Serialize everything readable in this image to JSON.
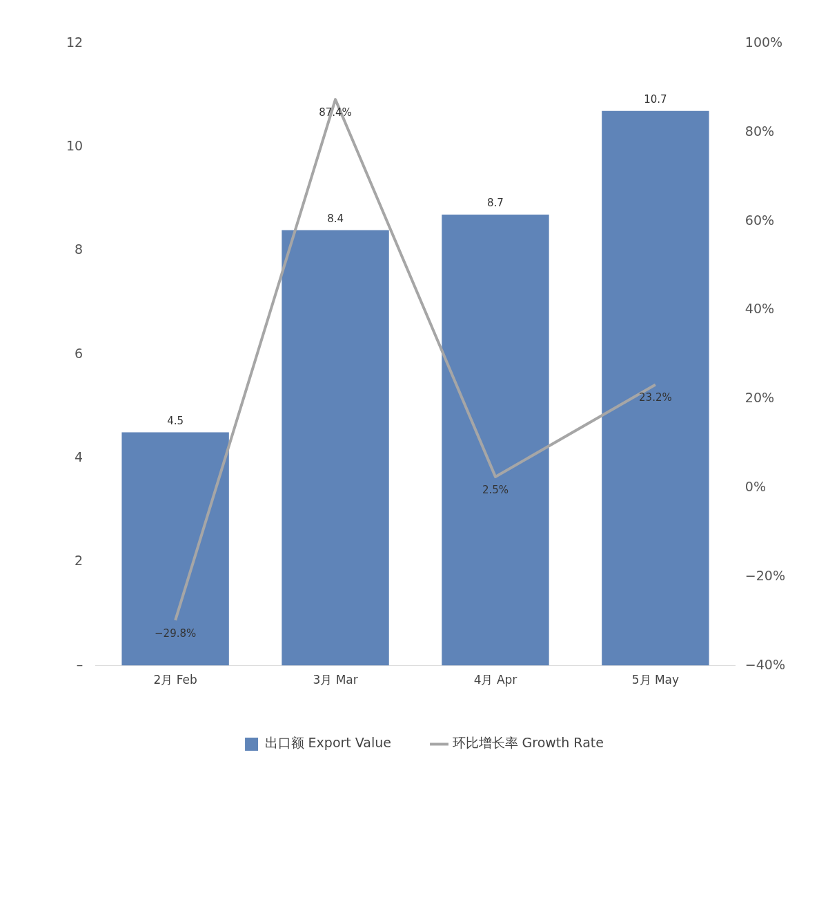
{
  "chart_data": {
    "type": "bar",
    "categories": [
      "2月 Feb",
      "3月 Mar",
      "4月 Apr",
      "5月 May"
    ],
    "series": [
      {
        "name": "出口额 Export Value",
        "color": "#5f84b8",
        "values": [
          4.5,
          8.4,
          8.7,
          10.7
        ],
        "value_labels": [
          "4.5",
          "8.4",
          "8.7",
          "10.7"
        ]
      },
      {
        "name": "环比增长率 Growth Rate",
        "type": "line",
        "axis": "y2",
        "color": "#a6a6a6",
        "values": [
          -29.8,
          87.4,
          2.5,
          23.2
        ],
        "value_labels": [
          "−29.8%",
          "87.4%",
          "2.5%",
          "23.2%"
        ]
      }
    ],
    "ylim": [
      0,
      12
    ],
    "yticks": [
      {
        "value": 0,
        "label": "–"
      },
      2,
      4,
      6,
      8,
      10,
      12
    ],
    "y2lim": [
      -40,
      100
    ],
    "y2ticks": [
      {
        "value": -40,
        "label": "−40%"
      },
      {
        "value": -20,
        "label": "−20%"
      },
      {
        "value": 0,
        "label": "0%"
      },
      {
        "value": 20,
        "label": "20%"
      },
      {
        "value": 40,
        "label": "40%"
      },
      {
        "value": 60,
        "label": "60%"
      },
      {
        "value": 80,
        "label": "80%"
      },
      {
        "value": 100,
        "label": "100%"
      }
    ],
    "grid": false,
    "legend": "bottom",
    "marker": "none"
  }
}
